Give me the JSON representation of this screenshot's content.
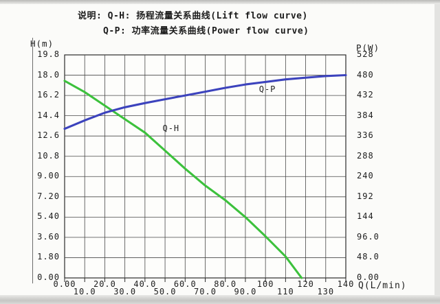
{
  "legend_note": {
    "line1": "说明: Q-H: 扬程流量关系曲线(Lift flow curve)",
    "line2": "Q-P: 功率流量关系曲线(Power flow curve)"
  },
  "chart_data": {
    "type": "line",
    "grid": true,
    "x_axis": {
      "label": "Q(L/min)",
      "min": 0,
      "max": 140,
      "tick_values": [
        0,
        10,
        20,
        30,
        40,
        50,
        60,
        70,
        80,
        90,
        100,
        110,
        120,
        130,
        140
      ],
      "tick_labels": [
        "0.00",
        "10.0",
        "20.0",
        "30.0",
        "40.0",
        "50.0",
        "60.0",
        "70.0",
        "80.0",
        "90.0",
        "100",
        "110",
        "120",
        "130",
        "140"
      ]
    },
    "left_axis": {
      "label": "H(m)",
      "min": 0,
      "max": 19.8,
      "tick_labels": [
        "19.8",
        "18.0",
        "16.2",
        "14.4",
        "12.6",
        "10.8",
        "9.00",
        "7.20",
        "5.40",
        "3.60",
        "1.80",
        "0.00"
      ]
    },
    "right_axis": {
      "label": "P(W)",
      "min": 0,
      "max": 528,
      "tick_labels": [
        "528",
        "480",
        "432",
        "384",
        "336",
        "288",
        "240",
        "192",
        "144",
        "96.0",
        "48.0",
        "0.00"
      ]
    },
    "series": [
      {
        "name": "Q-H",
        "description": "Lift flow curve",
        "axis": "left",
        "color": "#3cc13c",
        "x": [
          0,
          10,
          20,
          30,
          40,
          50,
          60,
          70,
          80,
          90,
          100,
          110,
          118
        ],
        "y": [
          17.5,
          16.5,
          15.3,
          14.1,
          12.9,
          11.3,
          9.7,
          8.2,
          6.9,
          5.4,
          3.7,
          1.9,
          0.0
        ]
      },
      {
        "name": "Q-P",
        "description": "Power flow curve",
        "axis": "right",
        "color": "#3c43bd",
        "x": [
          0,
          10,
          20,
          30,
          40,
          50,
          60,
          70,
          80,
          90,
          100,
          110,
          120,
          130,
          140
        ],
        "y": [
          353,
          373,
          391,
          404,
          414,
          423,
          432,
          441,
          450,
          458,
          464,
          470,
          474,
          478,
          480
        ]
      }
    ],
    "annotations": [
      {
        "text": "Q-H",
        "x": 53,
        "value": 13.3,
        "axis": "left"
      },
      {
        "text": "Q-P",
        "x": 101,
        "value": 446,
        "axis": "right"
      }
    ],
    "colors": {
      "qh_curve": "#3cc13c",
      "qp_curve": "#3c43bd",
      "grid": "#474747",
      "border": "#2a2a2a",
      "text": "#1c1c1c",
      "plot_background": "#fdfdfb"
    }
  }
}
